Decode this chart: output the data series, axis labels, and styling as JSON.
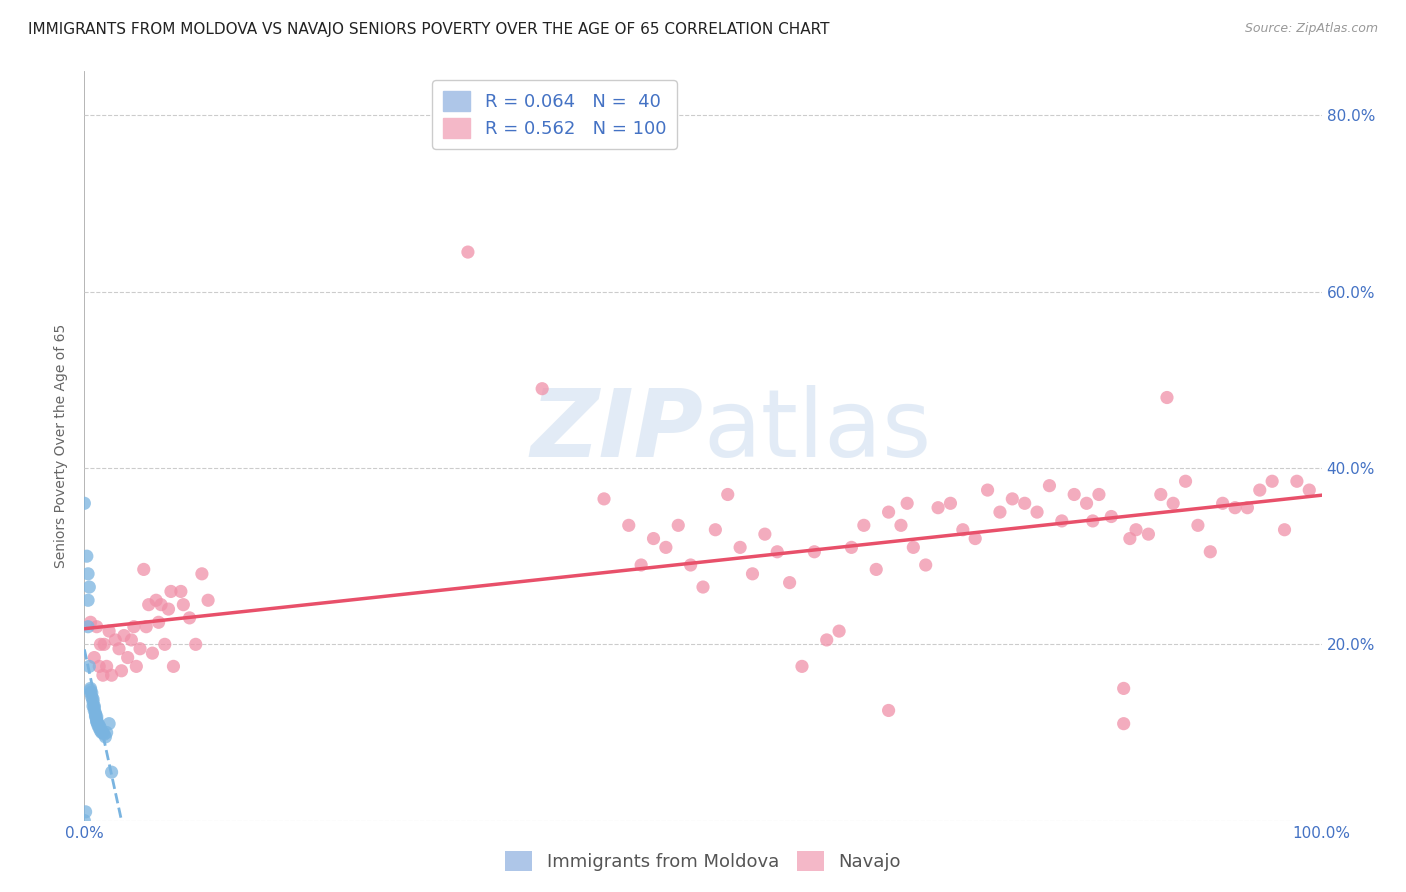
{
  "title": "IMMIGRANTS FROM MOLDOVA VS NAVAJO SENIORS POVERTY OVER THE AGE OF 65 CORRELATION CHART",
  "source": "Source: ZipAtlas.com",
  "ylabel": "Seniors Poverty Over the Age of 65",
  "xlim": [
    0.0,
    1.0
  ],
  "ylim": [
    0.0,
    0.85
  ],
  "xtick_positions": [
    0.0,
    1.0
  ],
  "xtick_labels": [
    "0.0%",
    "100.0%"
  ],
  "ytick_positions": [
    0.0,
    0.2,
    0.4,
    0.6,
    0.8
  ],
  "ytick_labels_right": [
    "",
    "20.0%",
    "40.0%",
    "60.0%",
    "80.0%"
  ],
  "moldova_color": "#7ab4e0",
  "navajo_color": "#f090a8",
  "moldova_line_color": "#7ab4e0",
  "navajo_line_color": "#e8506a",
  "background_color": "#ffffff",
  "grid_color": "#cccccc",
  "moldova_scatter": [
    [
      0.0,
      0.36
    ],
    [
      0.002,
      0.3
    ],
    [
      0.003,
      0.28
    ],
    [
      0.004,
      0.265
    ],
    [
      0.003,
      0.25
    ],
    [
      0.003,
      0.22
    ],
    [
      0.004,
      0.175
    ],
    [
      0.005,
      0.15
    ],
    [
      0.005,
      0.148
    ],
    [
      0.005,
      0.145
    ],
    [
      0.006,
      0.145
    ],
    [
      0.006,
      0.14
    ],
    [
      0.007,
      0.138
    ],
    [
      0.007,
      0.135
    ],
    [
      0.007,
      0.13
    ],
    [
      0.008,
      0.13
    ],
    [
      0.008,
      0.128
    ],
    [
      0.008,
      0.125
    ],
    [
      0.009,
      0.122
    ],
    [
      0.009,
      0.12
    ],
    [
      0.009,
      0.118
    ],
    [
      0.01,
      0.118
    ],
    [
      0.01,
      0.115
    ],
    [
      0.01,
      0.113
    ],
    [
      0.01,
      0.112
    ],
    [
      0.011,
      0.11
    ],
    [
      0.011,
      0.108
    ],
    [
      0.012,
      0.108
    ],
    [
      0.012,
      0.105
    ],
    [
      0.013,
      0.105
    ],
    [
      0.013,
      0.102
    ],
    [
      0.014,
      0.1
    ],
    [
      0.015,
      0.1
    ],
    [
      0.016,
      0.098
    ],
    [
      0.017,
      0.095
    ],
    [
      0.018,
      0.1
    ],
    [
      0.02,
      0.11
    ],
    [
      0.022,
      0.055
    ],
    [
      0.001,
      0.01
    ],
    [
      0.0,
      0.0
    ]
  ],
  "navajo_scatter": [
    [
      0.005,
      0.225
    ],
    [
      0.008,
      0.185
    ],
    [
      0.01,
      0.22
    ],
    [
      0.012,
      0.175
    ],
    [
      0.013,
      0.2
    ],
    [
      0.015,
      0.165
    ],
    [
      0.016,
      0.2
    ],
    [
      0.018,
      0.175
    ],
    [
      0.02,
      0.215
    ],
    [
      0.022,
      0.165
    ],
    [
      0.025,
      0.205
    ],
    [
      0.028,
      0.195
    ],
    [
      0.03,
      0.17
    ],
    [
      0.032,
      0.21
    ],
    [
      0.035,
      0.185
    ],
    [
      0.038,
      0.205
    ],
    [
      0.04,
      0.22
    ],
    [
      0.042,
      0.175
    ],
    [
      0.045,
      0.195
    ],
    [
      0.048,
      0.285
    ],
    [
      0.05,
      0.22
    ],
    [
      0.052,
      0.245
    ],
    [
      0.055,
      0.19
    ],
    [
      0.058,
      0.25
    ],
    [
      0.06,
      0.225
    ],
    [
      0.062,
      0.245
    ],
    [
      0.065,
      0.2
    ],
    [
      0.068,
      0.24
    ],
    [
      0.07,
      0.26
    ],
    [
      0.072,
      0.175
    ],
    [
      0.078,
      0.26
    ],
    [
      0.08,
      0.245
    ],
    [
      0.085,
      0.23
    ],
    [
      0.09,
      0.2
    ],
    [
      0.095,
      0.28
    ],
    [
      0.1,
      0.25
    ],
    [
      0.31,
      0.645
    ],
    [
      0.37,
      0.49
    ],
    [
      0.42,
      0.365
    ],
    [
      0.44,
      0.335
    ],
    [
      0.45,
      0.29
    ],
    [
      0.46,
      0.32
    ],
    [
      0.47,
      0.31
    ],
    [
      0.48,
      0.335
    ],
    [
      0.49,
      0.29
    ],
    [
      0.5,
      0.265
    ],
    [
      0.51,
      0.33
    ],
    [
      0.52,
      0.37
    ],
    [
      0.53,
      0.31
    ],
    [
      0.54,
      0.28
    ],
    [
      0.55,
      0.325
    ],
    [
      0.56,
      0.305
    ],
    [
      0.57,
      0.27
    ],
    [
      0.58,
      0.175
    ],
    [
      0.59,
      0.305
    ],
    [
      0.6,
      0.205
    ],
    [
      0.61,
      0.215
    ],
    [
      0.62,
      0.31
    ],
    [
      0.63,
      0.335
    ],
    [
      0.64,
      0.285
    ],
    [
      0.65,
      0.35
    ],
    [
      0.66,
      0.335
    ],
    [
      0.665,
      0.36
    ],
    [
      0.67,
      0.31
    ],
    [
      0.68,
      0.29
    ],
    [
      0.69,
      0.355
    ],
    [
      0.7,
      0.36
    ],
    [
      0.71,
      0.33
    ],
    [
      0.72,
      0.32
    ],
    [
      0.73,
      0.375
    ],
    [
      0.74,
      0.35
    ],
    [
      0.75,
      0.365
    ],
    [
      0.76,
      0.36
    ],
    [
      0.77,
      0.35
    ],
    [
      0.78,
      0.38
    ],
    [
      0.79,
      0.34
    ],
    [
      0.8,
      0.37
    ],
    [
      0.81,
      0.36
    ],
    [
      0.815,
      0.34
    ],
    [
      0.82,
      0.37
    ],
    [
      0.83,
      0.345
    ],
    [
      0.84,
      0.15
    ],
    [
      0.845,
      0.32
    ],
    [
      0.85,
      0.33
    ],
    [
      0.86,
      0.325
    ],
    [
      0.87,
      0.37
    ],
    [
      0.875,
      0.48
    ],
    [
      0.88,
      0.36
    ],
    [
      0.89,
      0.385
    ],
    [
      0.9,
      0.335
    ],
    [
      0.91,
      0.305
    ],
    [
      0.92,
      0.36
    ],
    [
      0.93,
      0.355
    ],
    [
      0.94,
      0.355
    ],
    [
      0.95,
      0.375
    ],
    [
      0.96,
      0.385
    ],
    [
      0.97,
      0.33
    ],
    [
      0.98,
      0.385
    ],
    [
      0.99,
      0.375
    ],
    [
      0.65,
      0.125
    ],
    [
      0.84,
      0.11
    ]
  ],
  "moldova_R": 0.064,
  "moldova_N": 40,
  "navajo_R": 0.562,
  "navajo_N": 100,
  "title_fontsize": 11,
  "source_fontsize": 9,
  "label_fontsize": 10,
  "tick_fontsize": 11,
  "legend_fontsize": 13
}
